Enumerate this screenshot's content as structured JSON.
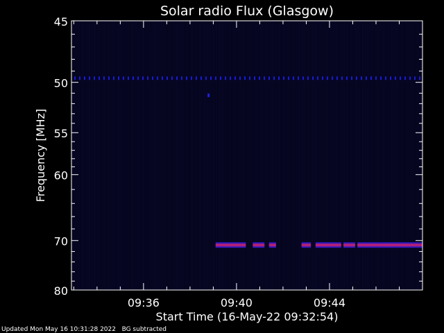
{
  "chart_data": {
    "type": "heatmap",
    "title": "Solar radio Flux (Glasgow)",
    "xlabel": "Start Time (16-May-22 09:32:54)",
    "ylabel": "Frequency [MHz]",
    "x_unit": "minutes after start",
    "x_range": [
      0,
      15.1
    ],
    "y_scale": "reciprocal",
    "y_range_mhz": [
      45,
      80
    ],
    "yticks": [
      45,
      50,
      55,
      60,
      70,
      80
    ],
    "ytick_labels": [
      "45",
      "50",
      "55",
      "60",
      "70",
      "80"
    ],
    "xticks": [
      3.1,
      7.1,
      11.1
    ],
    "xtick_labels": [
      "09:36",
      "09:40",
      "09:44"
    ],
    "background_color": "#05051e",
    "features": [
      {
        "name": "dotted line",
        "freq_mhz": 49.6,
        "x_start": 0,
        "x_end": 15.1,
        "color": "#1a1ad8"
      },
      {
        "name": "single dot",
        "freq_mhz": 51.2,
        "x": 5.9,
        "color": "#2020e0"
      },
      {
        "name": "band",
        "freq_mhz": 70.8,
        "color": "#b0207a",
        "segments": [
          [
            6.2,
            6.7
          ],
          [
            6.7,
            7.5
          ],
          [
            7.8,
            8.3
          ],
          [
            8.5,
            8.8
          ],
          [
            9.9,
            10.3
          ],
          [
            10.5,
            11.6
          ],
          [
            11.7,
            12.2
          ],
          [
            12.3,
            15.1
          ]
        ]
      }
    ]
  },
  "footer": {
    "updated": "Updated Mon May 16 10:31:28 2022",
    "note": "BG subtracted"
  }
}
